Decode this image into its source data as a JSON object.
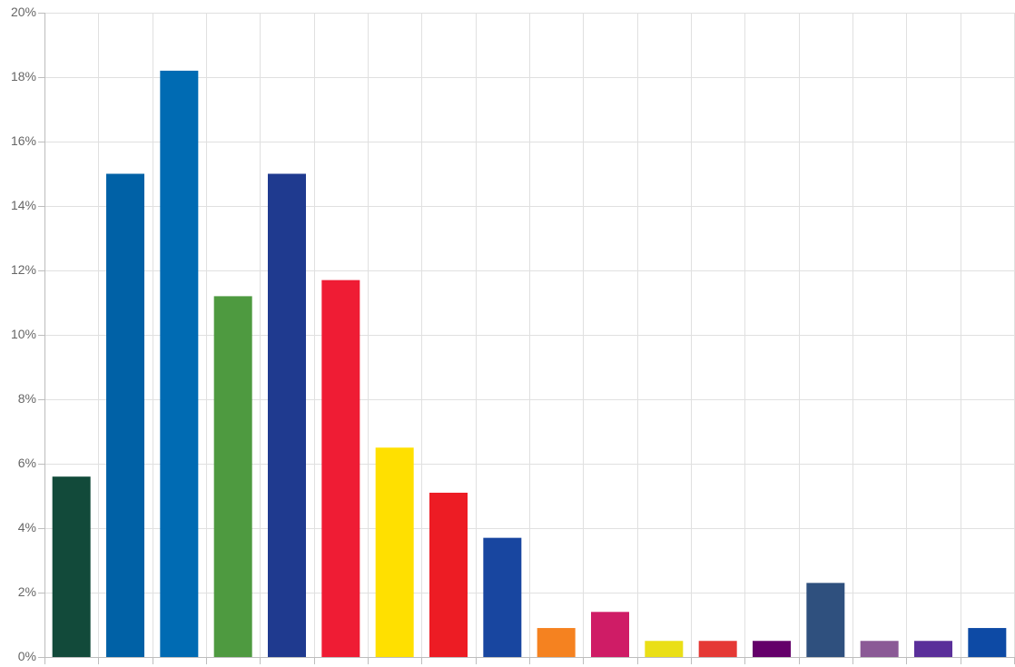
{
  "chart_data": {
    "type": "bar",
    "title": "",
    "xlabel": "",
    "ylabel": "",
    "ylim": [
      0,
      20
    ],
    "y_ticks": [
      {
        "value": 0,
        "label": "0%"
      },
      {
        "value": 2,
        "label": "2%"
      },
      {
        "value": 4,
        "label": "4%"
      },
      {
        "value": 6,
        "label": "6%"
      },
      {
        "value": 8,
        "label": "8%"
      },
      {
        "value": 10,
        "label": "10%"
      },
      {
        "value": 12,
        "label": "12%"
      },
      {
        "value": 14,
        "label": "14%"
      },
      {
        "value": 16,
        "label": "16%"
      },
      {
        "value": 18,
        "label": "18%"
      },
      {
        "value": 20,
        "label": "20%"
      }
    ],
    "grid": true,
    "legend": "none",
    "values": [
      5.6,
      15.0,
      18.2,
      11.2,
      15.0,
      11.7,
      6.5,
      5.1,
      3.7,
      0.9,
      1.4,
      0.5,
      0.5,
      0.5,
      2.3,
      0.5,
      0.5,
      0.9
    ],
    "colors": [
      "#124a3a",
      "#0061a6",
      "#006bb3",
      "#4e9a40",
      "#1f3a8f",
      "#ef1c34",
      "#ffe000",
      "#ed1c24",
      "#1846a0",
      "#f58220",
      "#cf1c66",
      "#eadf17",
      "#e53935",
      "#64006a",
      "#2f507e",
      "#8b5a96",
      "#5a2f9a",
      "#0d4aa5"
    ]
  }
}
